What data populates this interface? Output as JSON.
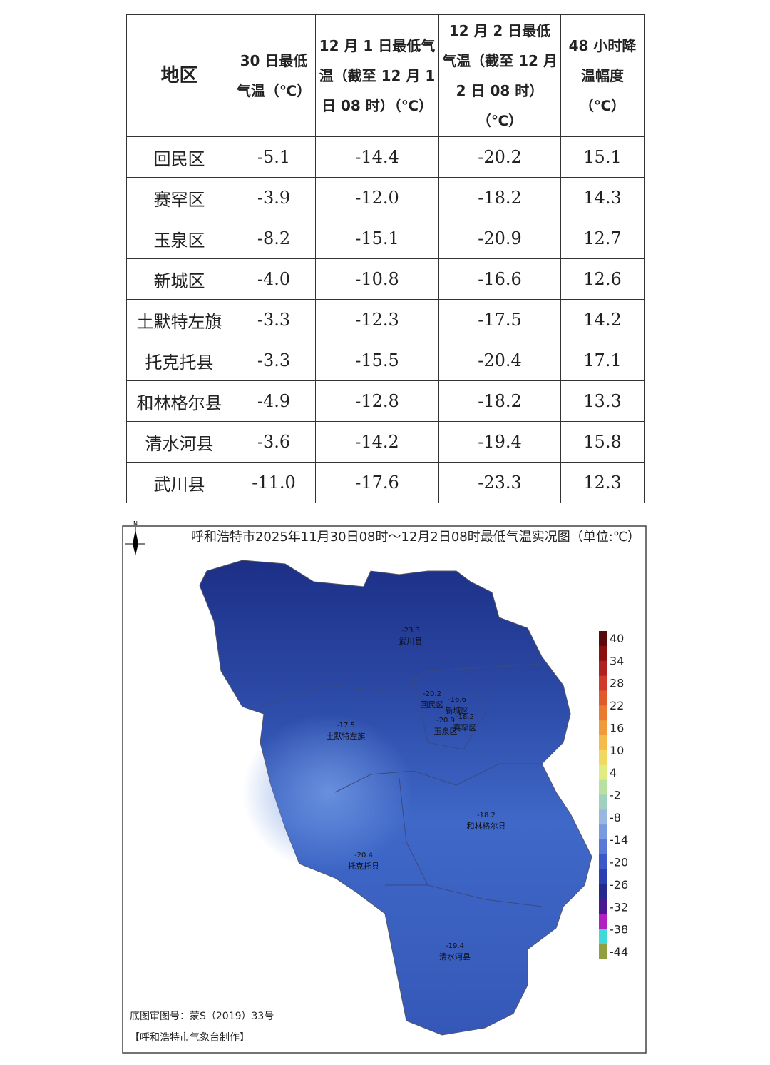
{
  "table": {
    "header": [
      "地区",
      "30 日最低气温（℃）",
      "12 月 1 日最低气温（截至 12 月 1 日 08 时）（℃）",
      "12 月 2 日最低气温（截至 12 月 2 日 08 时）（℃）",
      "48 小时降温幅度（℃）"
    ],
    "rows": [
      [
        "回民区",
        "-5.1",
        "-14.4",
        "-20.2",
        "15.1"
      ],
      [
        "赛罕区",
        "-3.9",
        "-12.0",
        "-18.2",
        "14.3"
      ],
      [
        "玉泉区",
        "-8.2",
        "-15.1",
        "-20.9",
        "12.7"
      ],
      [
        "新城区",
        "-4.0",
        "-10.8",
        "-16.6",
        "12.6"
      ],
      [
        "土默特左旗",
        "-3.3",
        "-12.3",
        "-17.5",
        "14.2"
      ],
      [
        "托克托县",
        "-3.3",
        "-15.5",
        "-20.4",
        "17.1"
      ],
      [
        "和林格尔县",
        "-4.9",
        "-12.8",
        "-18.2",
        "13.3"
      ],
      [
        "清水河县",
        "-3.6",
        "-14.2",
        "-19.4",
        "15.8"
      ],
      [
        "武川县",
        "-11.0",
        "-17.6",
        "-23.3",
        "12.3"
      ]
    ]
  },
  "map": {
    "north": "N",
    "title": "呼和浩特市2025年11月30日08时～12月2日08时最低气温实况图（单位:℃）",
    "places": [
      {
        "name": "武川县",
        "value": "-23.3"
      },
      {
        "name": "回民区",
        "value": "-20.2"
      },
      {
        "name": "新城区",
        "value": "-16.6"
      },
      {
        "name": "赛罕区",
        "value": "-18.2"
      },
      {
        "name": "玉泉区",
        "value": "-20.9"
      },
      {
        "name": "土默特左旗",
        "value": "-17.5"
      },
      {
        "name": "和林格尔县",
        "value": "-18.2"
      },
      {
        "name": "托克托县",
        "value": "-20.4"
      },
      {
        "name": "清水河县",
        "value": "-19.4"
      }
    ],
    "legend": [
      40,
      34,
      28,
      22,
      16,
      10,
      4,
      -2,
      -8,
      -14,
      -20,
      -26,
      -32,
      -38,
      -44
    ],
    "footer": [
      "底图审图号：蒙S（2019）33号",
      "【呼和浩特市气象台制作】"
    ]
  }
}
